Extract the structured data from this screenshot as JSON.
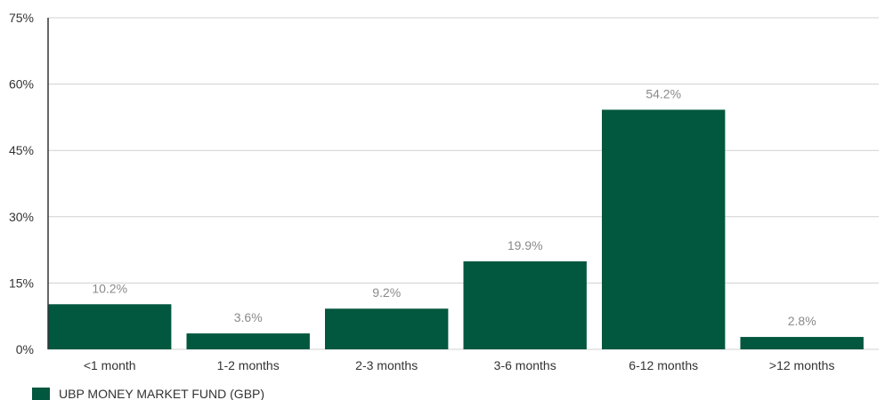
{
  "chart_data": {
    "type": "bar",
    "categories": [
      "<1 month",
      "1-2 months",
      "2-3 months",
      "3-6 months",
      "6-12 months",
      ">12 months"
    ],
    "series": [
      {
        "name": "UBP MONEY MARKET FUND (GBP)",
        "values": [
          10.2,
          3.6,
          9.2,
          19.9,
          54.2,
          2.8
        ],
        "labels": [
          "10.2%",
          "3.6%",
          "9.2%",
          "19.9%",
          "54.2%",
          "2.8%"
        ]
      }
    ],
    "yticks": [
      0,
      15,
      30,
      45,
      60,
      75
    ],
    "ytick_labels": [
      "0%",
      "15%",
      "30%",
      "45%",
      "60%",
      "75%"
    ],
    "ylim": [
      0,
      75
    ],
    "grid": true,
    "legend_position": "bottom-left",
    "colors": {
      "bar": "#02573f",
      "grid": "#d0d0d0",
      "axis": "#333333"
    }
  }
}
